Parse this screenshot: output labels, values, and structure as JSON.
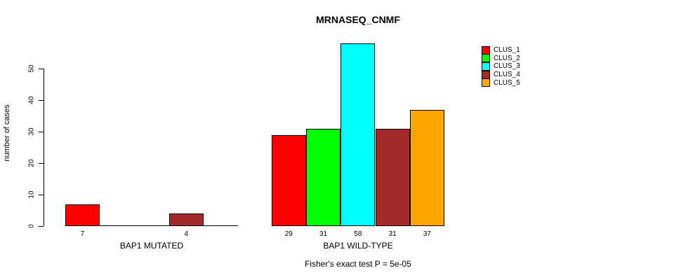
{
  "title": "MRNASEQ_CNMF",
  "y_axis": {
    "label": "number of cases",
    "ticks": [
      0,
      10,
      20,
      30,
      40,
      50
    ]
  },
  "footer": "Fisher's exact test P = 5e-05",
  "legend": {
    "items": [
      {
        "label": "CLUS_1",
        "color": "#FF0000"
      },
      {
        "label": "CLUS_2",
        "color": "#00FF00"
      },
      {
        "label": "CLUS_3",
        "color": "#00FFFF"
      },
      {
        "label": "CLUS_4",
        "color": "#A52A2A"
      },
      {
        "label": "CLUS_5",
        "color": "#FFA500"
      }
    ]
  },
  "chart_data": {
    "type": "bar",
    "title": "MRNASEQ_CNMF",
    "ylabel": "number of cases",
    "ylim": [
      0,
      58
    ],
    "grid": false,
    "legend_position": "top-right",
    "categories": [
      "CLUS_1",
      "CLUS_2",
      "CLUS_3",
      "CLUS_4",
      "CLUS_5"
    ],
    "colors": [
      "#FF0000",
      "#00FF00",
      "#00FFFF",
      "#A52A2A",
      "#FFA500"
    ],
    "groups": [
      {
        "label": "BAP1 MUTATED",
        "values": [
          7,
          0,
          0,
          4,
          0
        ]
      },
      {
        "label": "BAP1 WILD-TYPE",
        "values": [
          29,
          31,
          58,
          31,
          37
        ]
      }
    ],
    "shown_bar_labels": [
      7,
      4,
      29,
      31,
      58,
      31,
      37
    ],
    "annotation": "Fisher's exact test P = 5e-05"
  }
}
